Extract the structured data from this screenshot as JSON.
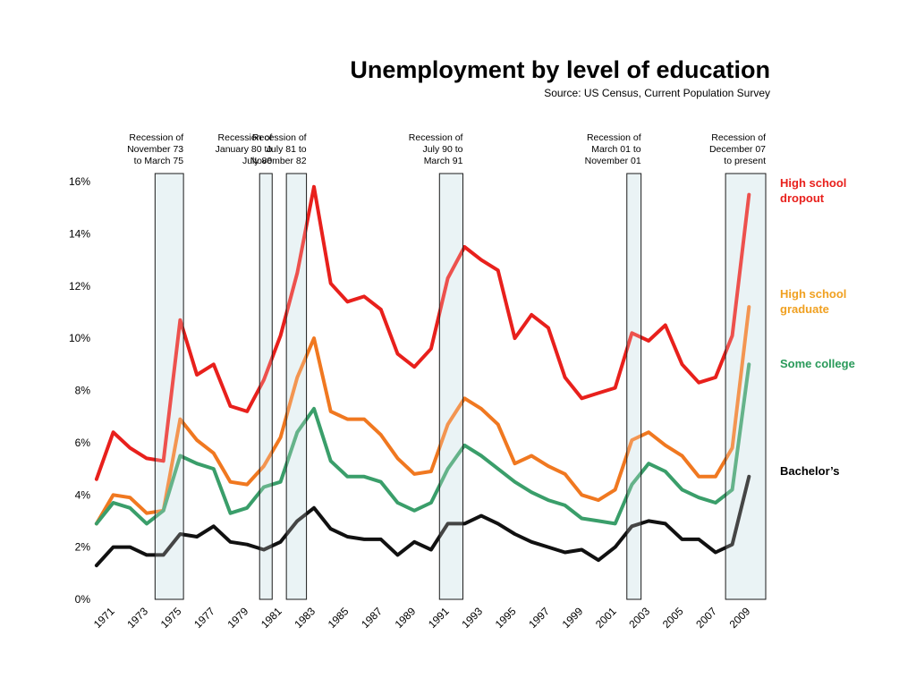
{
  "chart_data": {
    "type": "line",
    "title": "Unemployment by level of education",
    "subtitle": "Source: US Census, Current Population Survey",
    "ylim": [
      0,
      16
    ],
    "yticks": [
      "0%",
      "2%",
      "4%",
      "6%",
      "8%",
      "10%",
      "12%",
      "14%",
      "16%"
    ],
    "x_tick_labels": [
      "1971",
      "1973",
      "1975",
      "1977",
      "1979",
      "1981",
      "1983",
      "1985",
      "1987",
      "1989",
      "1991",
      "1993",
      "1995",
      "1997",
      "1999",
      "2001",
      "2003",
      "2005",
      "2007",
      "2009"
    ],
    "x": [
      1970,
      1971,
      1972,
      1973,
      1974,
      1975,
      1976,
      1977,
      1978,
      1979,
      1980,
      1981,
      1982,
      1983,
      1984,
      1985,
      1986,
      1987,
      1988,
      1989,
      1990,
      1991,
      1992,
      1993,
      1994,
      1995,
      1996,
      1997,
      1998,
      1999,
      2000,
      2001,
      2002,
      2003,
      2004,
      2005,
      2006,
      2007,
      2008,
      2009
    ],
    "xlim": [
      1969.9,
      2010
    ],
    "grid": false,
    "series": [
      {
        "name": "High school dropout",
        "color": "#e8201c",
        "values": [
          4.6,
          6.4,
          5.8,
          5.4,
          5.3,
          10.7,
          8.6,
          9.0,
          7.4,
          7.2,
          8.4,
          10.1,
          12.5,
          15.8,
          12.1,
          11.4,
          11.6,
          11.1,
          9.4,
          8.9,
          9.6,
          12.3,
          13.5,
          13.0,
          12.6,
          10.0,
          10.9,
          10.4,
          8.5,
          7.7,
          7.9,
          8.1,
          10.2,
          9.9,
          10.5,
          9.0,
          8.3,
          8.5,
          10.1,
          15.5
        ]
      },
      {
        "name": "High school graduate",
        "color": "#f07820",
        "values": [
          2.9,
          4.0,
          3.9,
          3.3,
          3.4,
          6.9,
          6.1,
          5.6,
          4.5,
          4.4,
          5.1,
          6.2,
          8.5,
          10.0,
          7.2,
          6.9,
          6.9,
          6.3,
          5.4,
          4.8,
          4.9,
          6.7,
          7.7,
          7.3,
          6.7,
          5.2,
          5.5,
          5.1,
          4.8,
          4.0,
          3.8,
          4.2,
          6.1,
          6.4,
          5.9,
          5.5,
          4.7,
          4.7,
          5.8,
          11.2
        ]
      },
      {
        "name": "Some college",
        "color": "#3a9e6a",
        "values": [
          2.9,
          3.7,
          3.5,
          2.9,
          3.4,
          5.5,
          5.2,
          5.0,
          3.3,
          3.5,
          4.3,
          4.5,
          6.4,
          7.3,
          5.3,
          4.7,
          4.7,
          4.5,
          3.7,
          3.4,
          3.7,
          5.0,
          5.9,
          5.5,
          5.0,
          4.5,
          4.1,
          3.8,
          3.6,
          3.1,
          3.0,
          2.9,
          4.4,
          5.2,
          4.9,
          4.2,
          3.9,
          3.7,
          4.2,
          9.0
        ]
      },
      {
        "name": "Bachelor’s",
        "color": "#111111",
        "values": [
          1.3,
          2.0,
          2.0,
          1.7,
          1.7,
          2.5,
          2.4,
          2.8,
          2.2,
          2.1,
          1.9,
          2.2,
          3.0,
          3.5,
          2.7,
          2.4,
          2.3,
          2.3,
          1.7,
          2.2,
          1.9,
          2.9,
          2.9,
          3.2,
          2.9,
          2.5,
          2.2,
          2.0,
          1.8,
          1.9,
          1.5,
          2.0,
          2.8,
          3.0,
          2.9,
          2.3,
          2.3,
          1.8,
          2.1,
          4.7
        ]
      }
    ],
    "recessions": [
      {
        "start": 1973.5,
        "end": 1975.2,
        "label": [
          "Recession of",
          "November 73",
          "to March 75"
        ]
      },
      {
        "start": 1979.75,
        "end": 1980.5,
        "label": [
          "Recession of",
          "January 80 to",
          "July 80"
        ]
      },
      {
        "start": 1981.35,
        "end": 1982.55,
        "label": [
          "Recession of",
          "July 81 to",
          "November 82"
        ]
      },
      {
        "start": 1990.5,
        "end": 1991.9,
        "label": [
          "Recession of",
          "July 90 to",
          "March 91"
        ]
      },
      {
        "start": 2001.7,
        "end": 2002.55,
        "label": [
          "Recession of",
          "March 01 to",
          "November 01"
        ]
      },
      {
        "start": 2007.6,
        "end": 2010.0,
        "label": [
          "Recession of",
          "December 07",
          "to present"
        ]
      }
    ],
    "legend": [
      {
        "lines": [
          "High school",
          "dropout"
        ],
        "color": "#e8201c"
      },
      {
        "lines": [
          "High school",
          "graduate"
        ],
        "color": "#f0a020"
      },
      {
        "lines": [
          "Some college"
        ],
        "color": "#2a9a5a"
      },
      {
        "lines": [
          "Bachelor’s"
        ],
        "color": "#000000"
      }
    ],
    "recession_fill": "#e4f0f2"
  }
}
